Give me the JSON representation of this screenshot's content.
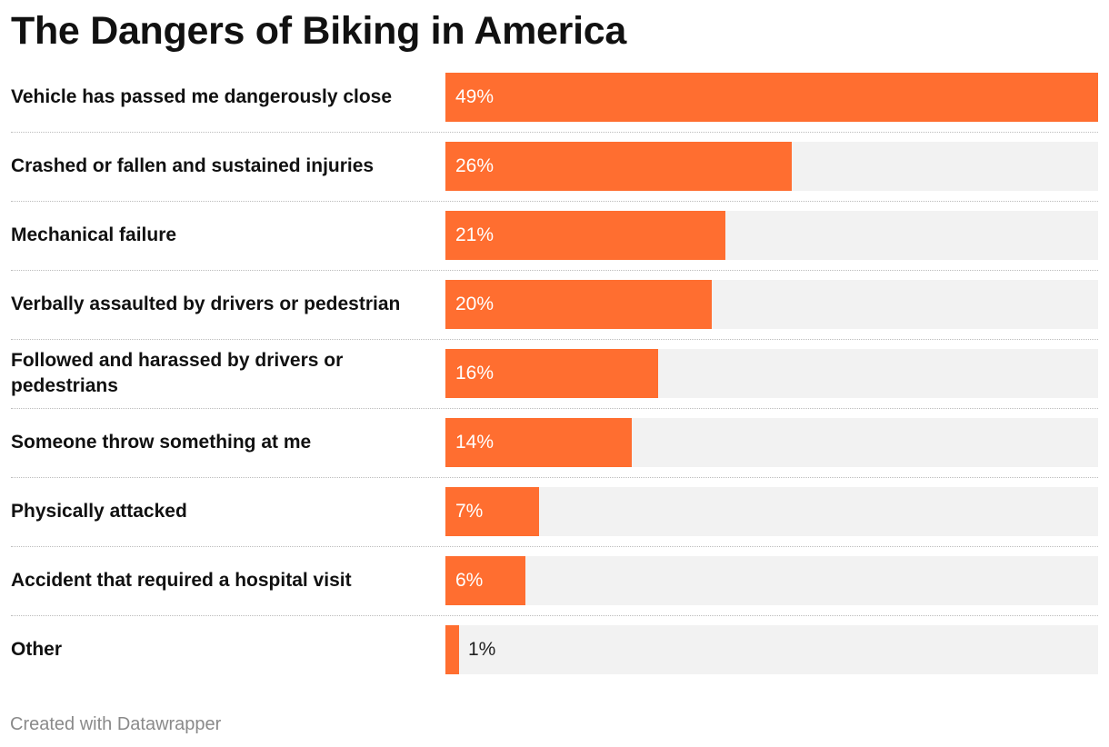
{
  "title": "The Dangers of Biking in America",
  "credit": "Created with Datawrapper",
  "colors": {
    "bar": "#ff6e30",
    "track": "#f2f2f2",
    "label_inside": "#ffffff",
    "label_outside": "#222222"
  },
  "chart_data": {
    "type": "bar",
    "orientation": "horizontal",
    "categories": [
      "Vehicle has passed me dangerously close",
      "Crashed or fallen and sustained injuries",
      "Mechanical failure",
      "Verbally assaulted by drivers or pedestrian",
      "Followed and harassed by drivers or pedestrians",
      "Someone throw something at me",
      "Physically attacked",
      "Accident that required a hospital visit",
      "Other"
    ],
    "values": [
      49,
      26,
      21,
      20,
      16,
      14,
      7,
      6,
      1
    ],
    "value_labels": [
      "49%",
      "26%",
      "21%",
      "20%",
      "16%",
      "14%",
      "7%",
      "6%",
      "1%"
    ],
    "xlim": [
      0,
      49
    ],
    "grid": false,
    "legend": "none"
  }
}
